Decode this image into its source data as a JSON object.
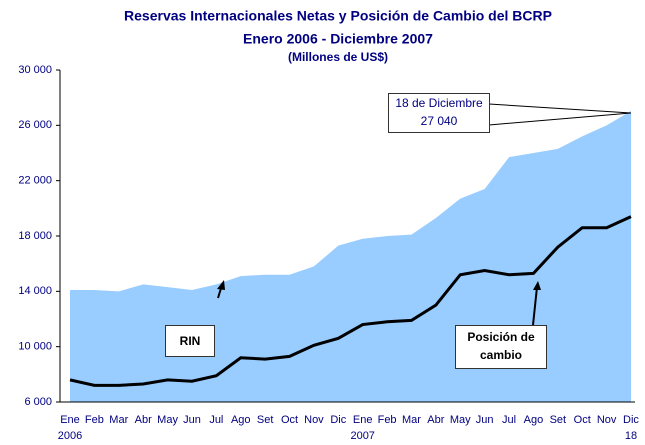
{
  "chart_data": {
    "type": "area_line",
    "title": "Reservas Internacionales Netas y Posición de Cambio del BCRP",
    "subtitle": "Enero 2006 - Diciembre 2007",
    "unit_label": "(Millones de US$)",
    "categories": [
      "Ene",
      "Feb",
      "Mar",
      "Abr",
      "May",
      "Jun",
      "Jul",
      "Ago",
      "Set",
      "Oct",
      "Nov",
      "Dic",
      "Ene",
      "Feb",
      "Mar",
      "Abr",
      "May",
      "Jun",
      "Jul",
      "Ago",
      "Set",
      "Oct",
      "Nov",
      "Dic"
    ],
    "x_sublabels": [
      "2006",
      null,
      null,
      null,
      null,
      null,
      null,
      null,
      null,
      null,
      null,
      null,
      "2007",
      null,
      null,
      null,
      null,
      null,
      null,
      null,
      null,
      null,
      null,
      "18"
    ],
    "ylim": [
      6000,
      30000
    ],
    "yticks": [
      {
        "value": 6000,
        "label": "6 000"
      },
      {
        "value": 10000,
        "label": "10 000"
      },
      {
        "value": 14000,
        "label": "14 000"
      },
      {
        "value": 18000,
        "label": "18 000"
      },
      {
        "value": 22000,
        "label": "22 000"
      },
      {
        "value": 26000,
        "label": "26 000"
      },
      {
        "value": 30000,
        "label": "30 000"
      }
    ],
    "series": [
      {
        "name": "RIN",
        "color": "#99ccff",
        "kind": "area",
        "values": [
          14100,
          14100,
          14000,
          14500,
          14300,
          14100,
          14500,
          15100,
          15200,
          15200,
          15800,
          17300,
          17800,
          18000,
          18100,
          19300,
          20700,
          21400,
          23700,
          24000,
          24300,
          25200,
          26000,
          27040
        ],
        "value_labels": [
          null,
          null,
          null,
          null,
          null,
          null,
          null,
          null,
          null,
          null,
          null,
          null,
          null,
          null,
          null,
          null,
          null,
          null,
          null,
          null,
          null,
          null,
          null,
          "27 040"
        ]
      },
      {
        "name": "Posición de cambio",
        "color": "#000000",
        "kind": "line",
        "values": [
          7600,
          7200,
          7200,
          7300,
          7600,
          7500,
          7900,
          9200,
          9100,
          9300,
          10100,
          10600,
          11600,
          11800,
          11900,
          13000,
          15200,
          15500,
          15200,
          15300,
          17200,
          18600,
          18600,
          19400
        ]
      }
    ],
    "annotation": "18 de Diciembre"
  }
}
